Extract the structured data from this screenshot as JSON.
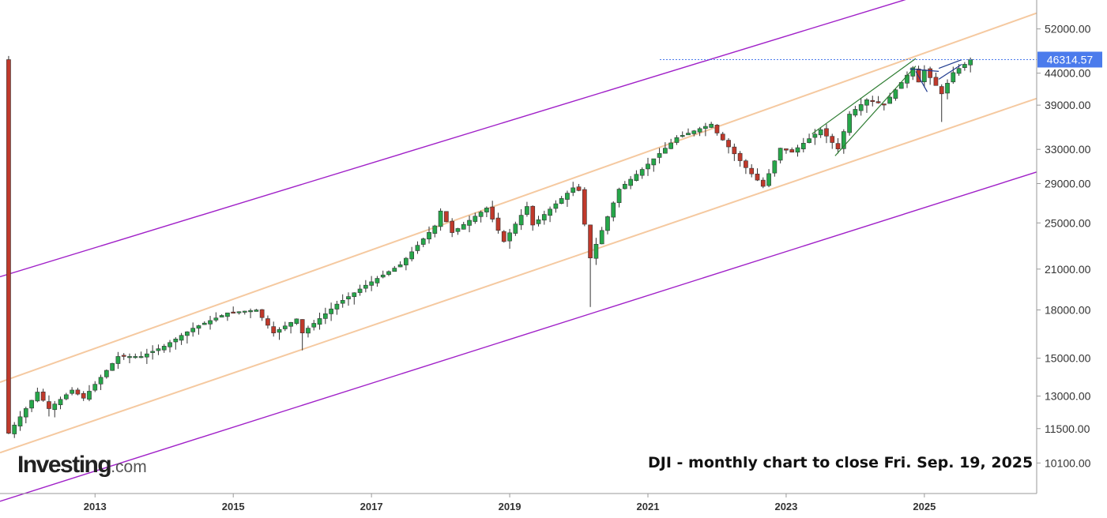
{
  "chart_data": {
    "type": "candlestick",
    "title": "",
    "instrument": "DJI",
    "annotation": "DJI - monthly chart to close Fri. Sep. 19, 2025",
    "x_tick_labels": [
      "2013",
      "2015",
      "2017",
      "2019",
      "2021",
      "2023",
      "2025"
    ],
    "y_tick_labels": [
      "52000.00",
      "44000.00",
      "39000.00",
      "33000.00",
      "29000.00",
      "25000.00",
      "21000.00",
      "18000.00",
      "15000.00",
      "13000.00",
      "11500.00",
      "10100.00"
    ],
    "y_scale": "log",
    "current_price_label": "46314.57",
    "current_price": 46314.57,
    "x_range": [
      "2011-09-01",
      "2026-09-01"
    ],
    "ylim": [
      9000,
      58000
    ],
    "grid": false,
    "colors": {
      "up": "#26a74a",
      "down": "#c0392b",
      "price_tag": "#4b7bec",
      "channel_outer": "#a020c8",
      "channel_inner": "#f5c9a0",
      "trendline": "#2e7d32",
      "wedge": "#1f3b8f"
    },
    "channels": [
      {
        "name": "outer-upper",
        "color": "#a020c8",
        "points": [
          [
            "2011-09-01",
            20400
          ],
          [
            "2018-12-01",
            36400
          ]
        ]
      },
      {
        "name": "outer-lower",
        "color": "#a020c8",
        "points": [
          [
            "2012-06-01",
            9300
          ],
          [
            "2026-09-01",
            30300
          ]
        ]
      },
      {
        "name": "inner-upper",
        "color": "#f5c9a0",
        "points": [
          [
            "2011-09-01",
            13700
          ],
          [
            "2025-09-01",
            50300
          ]
        ]
      },
      {
        "name": "inner-mid",
        "color": "#f5c9a0",
        "points": [
          [
            "2011-09-01",
            10500
          ],
          [
            "2026-09-01",
            40000
          ]
        ]
      }
    ],
    "trendlines": [
      {
        "name": "rising-wedge-upper",
        "color": "#2e7d32",
        "points": [
          [
            "2023-06-01",
            35000
          ],
          [
            "2024-12-01",
            46500
          ]
        ]
      },
      {
        "name": "rising-wedge-lower",
        "color": "#2e7d32",
        "points": [
          [
            "2023-10-01",
            32200
          ],
          [
            "2024-12-01",
            45200
          ]
        ]
      },
      {
        "name": "pullback-upper",
        "color": "#1f3b8f",
        "points": [
          [
            "2024-11-01",
            44700
          ],
          [
            "2025-04-01",
            44300
          ]
        ]
      },
      {
        "name": "pullback-lower",
        "color": "#1f3b8f",
        "points": [
          [
            "2024-12-01",
            44300
          ],
          [
            "2025-02-01",
            41000
          ]
        ]
      },
      {
        "name": "recent-wedge-upper",
        "color": "#1f3b8f",
        "points": [
          [
            "2025-04-01",
            44800
          ],
          [
            "2025-08-01",
            46300
          ]
        ]
      },
      {
        "name": "recent-wedge-lower",
        "color": "#1f3b8f",
        "points": [
          [
            "2025-04-01",
            43000
          ],
          [
            "2025-08-01",
            45500
          ]
        ]
      }
    ],
    "price_path": [
      [
        "2011-10-01",
        11300
      ],
      [
        "2012-03-01",
        13200
      ],
      [
        "2012-05-01",
        12400
      ],
      [
        "2012-09-01",
        13300
      ],
      [
        "2012-11-01",
        12900
      ],
      [
        "2013-05-01",
        15100
      ],
      [
        "2013-09-01",
        15100
      ],
      [
        "2014-01-01",
        15700
      ],
      [
        "2014-06-01",
        16800
      ],
      [
        "2014-12-01",
        17800
      ],
      [
        "2015-05-01",
        18000
      ],
      [
        "2015-08-01",
        16500
      ],
      [
        "2015-12-01",
        17400
      ],
      [
        "2016-01-01",
        16500
      ],
      [
        "2016-07-01",
        18400
      ],
      [
        "2016-12-01",
        19760
      ],
      [
        "2017-06-01",
        21350
      ],
      [
        "2017-12-01",
        24720
      ],
      [
        "2018-01-01",
        26150
      ],
      [
        "2018-03-01",
        24100
      ],
      [
        "2018-09-01",
        26450
      ],
      [
        "2018-12-01",
        23300
      ],
      [
        "2019-04-01",
        26600
      ],
      [
        "2019-05-01",
        24800
      ],
      [
        "2019-12-01",
        28540
      ],
      [
        "2020-01-01",
        28250
      ],
      [
        "2020-03-01",
        21900
      ],
      [
        "2020-08-01",
        28400
      ],
      [
        "2020-12-01",
        30600
      ],
      [
        "2021-06-01",
        34500
      ],
      [
        "2021-12-01",
        36300
      ],
      [
        "2022-01-01",
        35100
      ],
      [
        "2022-06-01",
        30800
      ],
      [
        "2022-09-01",
        28700
      ],
      [
        "2022-12-01",
        33150
      ],
      [
        "2023-02-01",
        32650
      ],
      [
        "2023-07-01",
        35550
      ],
      [
        "2023-10-01",
        33050
      ],
      [
        "2023-12-01",
        37700
      ],
      [
        "2024-03-01",
        39800
      ],
      [
        "2024-06-01",
        39100
      ],
      [
        "2024-11-01",
        44900
      ],
      [
        "2024-12-01",
        42550
      ],
      [
        "2025-01-01",
        44550
      ],
      [
        "2025-03-01",
        42000
      ],
      [
        "2025-04-01",
        40700
      ],
      [
        "2025-06-01",
        44100
      ],
      [
        "2025-08-01",
        45500
      ],
      [
        "2025-09-01",
        46314.57
      ]
    ],
    "key_lows": [
      [
        "2016-01-01",
        15450
      ],
      [
        "2020-03-01",
        18200
      ],
      [
        "2022-09-01",
        28660
      ],
      [
        "2025-04-01",
        36600
      ]
    ]
  }
}
